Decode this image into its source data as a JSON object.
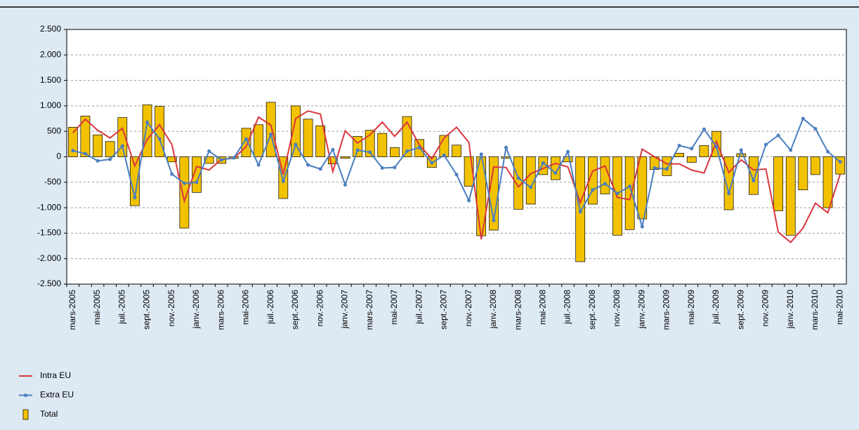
{
  "chart_data": {
    "type": "bar",
    "categories": [
      "mars-2005",
      null,
      "mai-2005",
      null,
      "juil.-2005",
      null,
      "sept.-2005",
      null,
      "nov.-2005",
      null,
      "janv.-2006",
      null,
      "mars-2006",
      null,
      "mai-2006",
      null,
      "juil.-2006",
      null,
      "sept.-2006",
      null,
      "nov.-2006",
      null,
      "janv.-2007",
      null,
      "mars-2007",
      null,
      "mai-2007",
      null,
      "juil.-2007",
      null,
      "sept.-2007",
      null,
      "nov.-2007",
      null,
      "janv.-2008",
      null,
      "mars-2008",
      null,
      "mai-2008",
      null,
      "juil.-2008",
      null,
      "sept.-2008",
      null,
      "nov.-2008",
      null,
      "janv.-2009",
      null,
      "mars-2009",
      null,
      "mai-2009",
      null,
      "juil.-2009",
      null,
      "sept.-2009",
      null,
      "nov.-2009",
      null,
      "janv.-2010",
      null,
      "mars-2010",
      null,
      "mai-2010"
    ],
    "series": [
      {
        "name": "Intra EU",
        "type": "line",
        "color": "#d9363e",
        "values": [
          470,
          740,
          520,
          370,
          560,
          -180,
          340,
          630,
          240,
          -870,
          -190,
          -260,
          -50,
          -30,
          200,
          780,
          620,
          -350,
          750,
          900,
          840,
          -290,
          510,
          270,
          430,
          680,
          400,
          680,
          230,
          -40,
          370,
          580,
          280,
          -1620,
          -200,
          -210,
          -590,
          -330,
          -230,
          -130,
          -200,
          -900,
          -280,
          -180,
          -800,
          -840,
          150,
          0,
          -140,
          -140,
          -260,
          -320,
          300,
          -310,
          -60,
          -260,
          -240,
          -1480,
          -1680,
          -1400,
          -910,
          -1100,
          -340
        ]
      },
      {
        "name": "Extra EU",
        "type": "line",
        "color": "#4a7ebf",
        "markers": true,
        "values": [
          120,
          60,
          -80,
          -50,
          210,
          -800,
          680,
          350,
          -340,
          -520,
          -500,
          110,
          -60,
          -20,
          350,
          -160,
          440,
          -480,
          240,
          -160,
          -240,
          140,
          -550,
          130,
          90,
          -220,
          -210,
          110,
          180,
          -120,
          30,
          -350,
          -860,
          50,
          -1250,
          180,
          -420,
          -600,
          -120,
          -320,
          100,
          -1080,
          -650,
          -530,
          -720,
          -580,
          -1370,
          -220,
          -240,
          220,
          160,
          540,
          200,
          -720,
          130,
          -470,
          240,
          420,
          130,
          750,
          550,
          100,
          -100
        ]
      },
      {
        "name": "Total",
        "type": "bar",
        "color": "#f2c200",
        "values": [
          580,
          800,
          430,
          300,
          770,
          -960,
          1020,
          990,
          -100,
          -1400,
          -700,
          -130,
          -130,
          -30,
          560,
          630,
          1070,
          -820,
          1000,
          740,
          610,
          -140,
          -30,
          400,
          520,
          460,
          180,
          790,
          340,
          -210,
          420,
          230,
          -580,
          -1550,
          -1440,
          -30,
          -1030,
          -930,
          -350,
          -450,
          -100,
          -2060,
          -930,
          -730,
          -1540,
          -1430,
          -1220,
          -250,
          -370,
          70,
          -110,
          220,
          500,
          -1040,
          60,
          -740,
          0,
          -1060,
          -1540,
          -650,
          -350,
          -1000,
          -340
        ]
      }
    ],
    "ylim": [
      -2500,
      2500
    ],
    "yticks": [
      {
        "value": -2500,
        "label": "-2.500"
      },
      {
        "value": -2000,
        "label": "-2.000"
      },
      {
        "value": -1500,
        "label": "-1.500"
      },
      {
        "value": -1000,
        "label": "-1.000"
      },
      -500,
      0,
      500,
      {
        "value": 1000,
        "label": "1.000"
      },
      {
        "value": 1500,
        "label": "1.500"
      },
      {
        "value": 2000,
        "label": "2.000"
      },
      {
        "value": 2500,
        "label": "2.500"
      }
    ],
    "grid": true
  }
}
